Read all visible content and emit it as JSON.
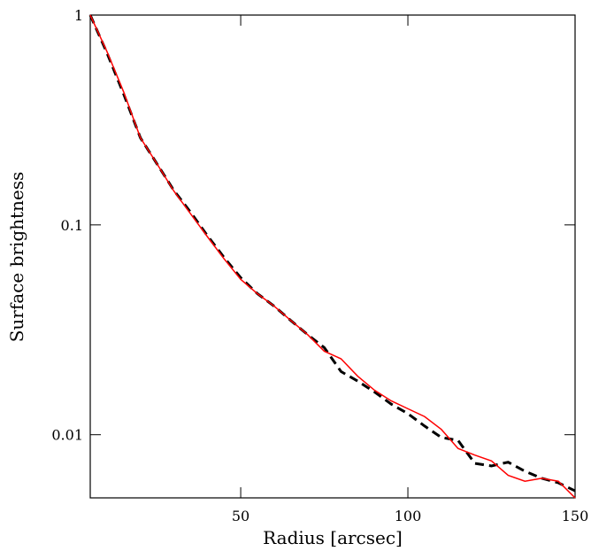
{
  "chart_data": {
    "type": "line",
    "x_label": "Radius [arcsec]",
    "y_label": "Surface brightness",
    "x": [
      5,
      10,
      15,
      20,
      25,
      30,
      35,
      40,
      45,
      50,
      55,
      60,
      65,
      70,
      75,
      80,
      85,
      90,
      95,
      100,
      105,
      110,
      115,
      120,
      125,
      130,
      135,
      140,
      145,
      150
    ],
    "series": [
      {
        "color": "#000000",
        "dash": true,
        "values": [
          1.0,
          0.66,
          0.42,
          0.26,
          0.195,
          0.146,
          0.115,
          0.089,
          0.07,
          0.056,
          0.047,
          0.041,
          0.035,
          0.03,
          0.026,
          0.02,
          0.018,
          0.016,
          0.014,
          0.0126,
          0.011,
          0.0097,
          0.0094,
          0.0073,
          0.0071,
          0.0074,
          0.0067,
          0.0062,
          0.0059,
          0.0054
        ]
      },
      {
        "color": "#ff0000",
        "dash": false,
        "values": [
          1.0,
          0.67,
          0.43,
          0.26,
          0.195,
          0.145,
          0.113,
          0.088,
          0.069,
          0.055,
          0.047,
          0.041,
          0.035,
          0.03,
          0.025,
          0.023,
          0.019,
          0.0163,
          0.0145,
          0.0133,
          0.0122,
          0.0106,
          0.0086,
          0.008,
          0.0075,
          0.0064,
          0.006,
          0.0062,
          0.006,
          0.005
        ]
      }
    ],
    "xlim": [
      5,
      150
    ],
    "xticks": [
      50,
      100,
      150
    ],
    "ylim": [
      0.005,
      1
    ],
    "yticks": [
      0.01,
      0.1,
      1
    ],
    "log_y": true
  }
}
